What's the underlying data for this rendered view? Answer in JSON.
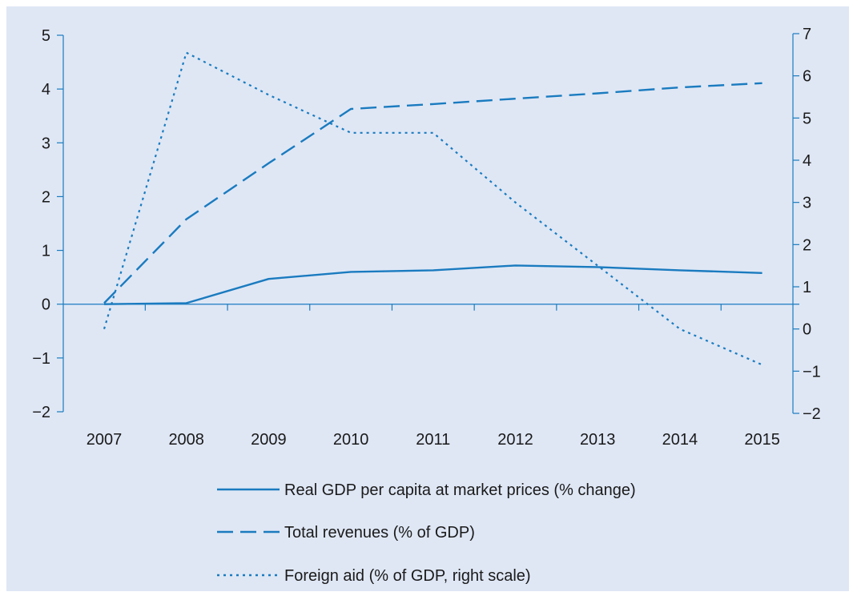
{
  "chart_data": {
    "type": "line",
    "categories": [
      "2007",
      "2008",
      "2009",
      "2010",
      "2011",
      "2012",
      "2013",
      "2014",
      "2015"
    ],
    "series": [
      {
        "name": "Real GDP per capita at market prices (% change)",
        "axis": "left",
        "style": "solid",
        "values": [
          0.0,
          0.02,
          0.47,
          0.6,
          0.63,
          0.72,
          0.69,
          0.63,
          0.58
        ]
      },
      {
        "name": "Total revenues (% of GDP)",
        "axis": "left",
        "style": "dashed",
        "values": [
          0.02,
          1.58,
          2.62,
          3.63,
          3.72,
          3.82,
          3.92,
          4.03,
          4.11
        ]
      },
      {
        "name": "Foreign aid (% of GDP, right scale)",
        "axis": "right",
        "style": "dotted",
        "values": [
          0.0,
          6.55,
          5.55,
          4.65,
          4.65,
          3.0,
          1.5,
          0.0,
          -0.85
        ]
      }
    ],
    "y_left": {
      "min": -2,
      "max": 5,
      "ticks": [
        "5",
        "4",
        "3",
        "2",
        "1",
        "0",
        "−1",
        "−2"
      ]
    },
    "y_right": {
      "min": -2,
      "max": 7,
      "ticks": [
        "7",
        "6",
        "5",
        "4",
        "3",
        "2",
        "1",
        "0",
        "−1",
        "−2"
      ]
    },
    "grid": false,
    "legend_position": "bottom",
    "colors": {
      "line": "#1a7bbf",
      "axis": "#1a7bbf",
      "background": "#dfe7f5"
    }
  }
}
